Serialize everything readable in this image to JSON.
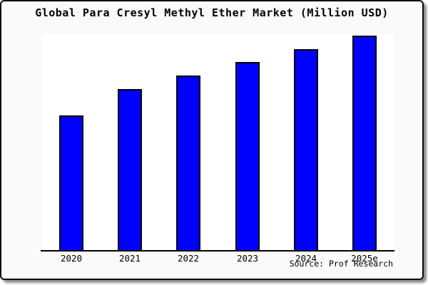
{
  "colors": {
    "bar_fill": "#0000ff",
    "bar_border": "#000000",
    "card_background": "#fafafa",
    "plot_background": "#ffffff",
    "axis": "#000000",
    "text": "#000000"
  },
  "source_credit": "Source: Prof Research",
  "chart_data": {
    "type": "bar",
    "title": "Global Para Cresyl Methyl Ether Market (Million USD)",
    "categories": [
      "2020",
      "2021",
      "2022",
      "2023",
      "2024",
      "2025e"
    ],
    "values": [
      62.8,
      75.1,
      81.4,
      87.7,
      93.7,
      100.0
    ],
    "value_units": "relative bar height, % of tallest (2025e) bar; y-axis has no tick labels in chart",
    "xlabel": "",
    "ylabel": "",
    "ylim": [
      0,
      100
    ],
    "grid": false,
    "legend": "none",
    "y_axis_visible": false,
    "source": "Source: Prof Research"
  }
}
